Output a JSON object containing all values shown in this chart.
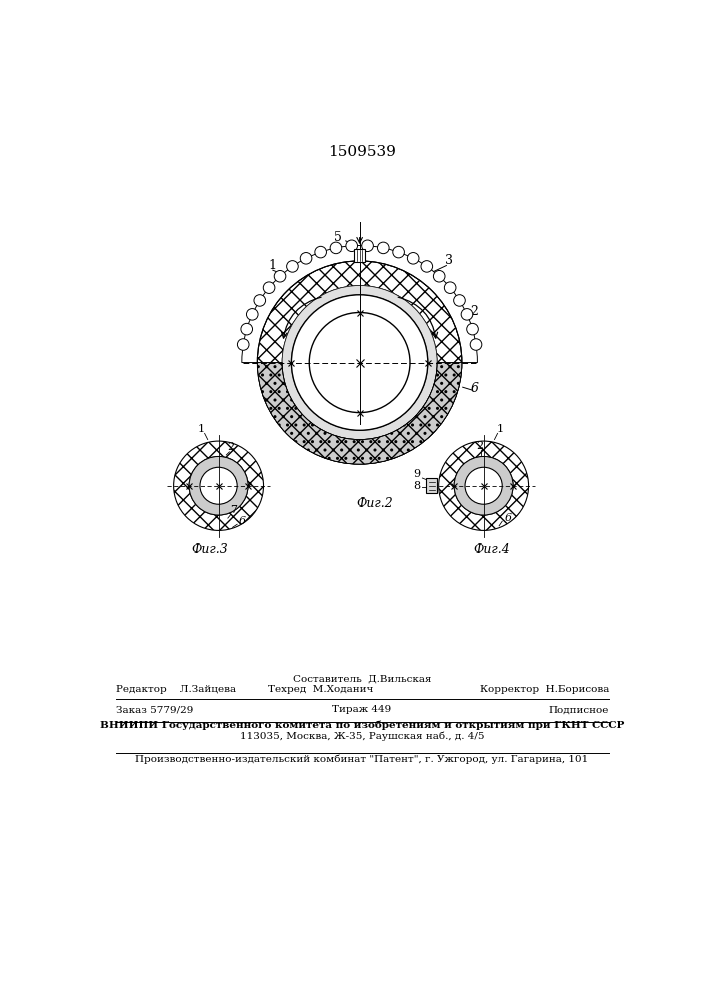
{
  "title": "1509539",
  "fig2_label": "Фиг.2",
  "fig3_label": "Фиг.3",
  "fig4_label": "Фиг.4",
  "bg_color": "#ffffff",
  "footer_composer": "Составитель  Д.Вильская",
  "footer_editor": "Редактор    Л.Зайцева",
  "footer_techred": "Техред  М.Ходанич",
  "footer_corrector": "Корректор  Н.Борисова",
  "footer_order": "Заказ 5779/29",
  "footer_tirazh": "Тираж 449",
  "footer_podp": "Подписное",
  "footer_vniiipi": "ВНИИПИ Государственного комитета по изобретениям и открытиям при ГКНТ СССР",
  "footer_address": "113035, Москва, Ж-35, Раушская наб., д. 4/5",
  "footer_patent": "Производственно-издательский комбинат \"Патент\", г. Ужгород, ул. Гагарина, 101"
}
